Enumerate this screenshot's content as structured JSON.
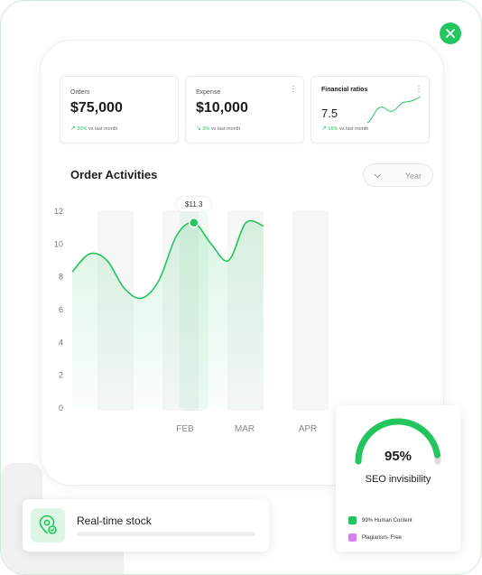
{
  "close_button": {
    "icon": "close-icon",
    "color": "#22c55e"
  },
  "stats": [
    {
      "label": "Orders",
      "value": "$75,000",
      "change": "30%",
      "change_text": "vs last month",
      "trend": "up"
    },
    {
      "label": "Expense",
      "value": "$10,000",
      "change": "3%",
      "change_text": "vs last month",
      "trend": "down"
    },
    {
      "label": "Financial ratios",
      "value": "7.5",
      "change": "16%",
      "change_text": "vs last month",
      "trend": "up"
    }
  ],
  "order_activities": {
    "title": "Order Activities",
    "period_select": {
      "value": "Year"
    },
    "tooltip": "$11.3"
  },
  "chart_data": {
    "type": "area",
    "title": "Order Activities",
    "x_ticks": [
      "FEB",
      "MAR",
      "APR"
    ],
    "y_ticks": [
      0,
      2,
      4,
      6,
      8,
      10,
      12
    ],
    "ylim": [
      0,
      12
    ],
    "grid": false,
    "x": [
      0,
      0.5,
      1,
      1.5,
      2,
      2.5,
      3,
      3.5,
      4,
      4.5,
      5,
      5.5
    ],
    "series": [
      {
        "values": [
          8.3,
          9.4,
          9.0,
          7.3,
          6.7,
          7.8,
          10.5,
          11.3,
          10.0,
          9.0,
          11.3,
          11.1
        ]
      }
    ],
    "highlight": {
      "x": 3.5,
      "value": 11.3,
      "label": "$11.3"
    },
    "color": "#22c55e"
  },
  "seo": {
    "percent_text": "95%",
    "percent": 95,
    "label": "SEO invisibility",
    "legend": [
      {
        "text": "99% Human Content",
        "color": "#22c55e"
      },
      {
        "text": "Plagiarism- Free",
        "color": "#d481f0"
      }
    ]
  },
  "stock": {
    "title": "Real-time stock",
    "icon": "location-pin-icon"
  }
}
